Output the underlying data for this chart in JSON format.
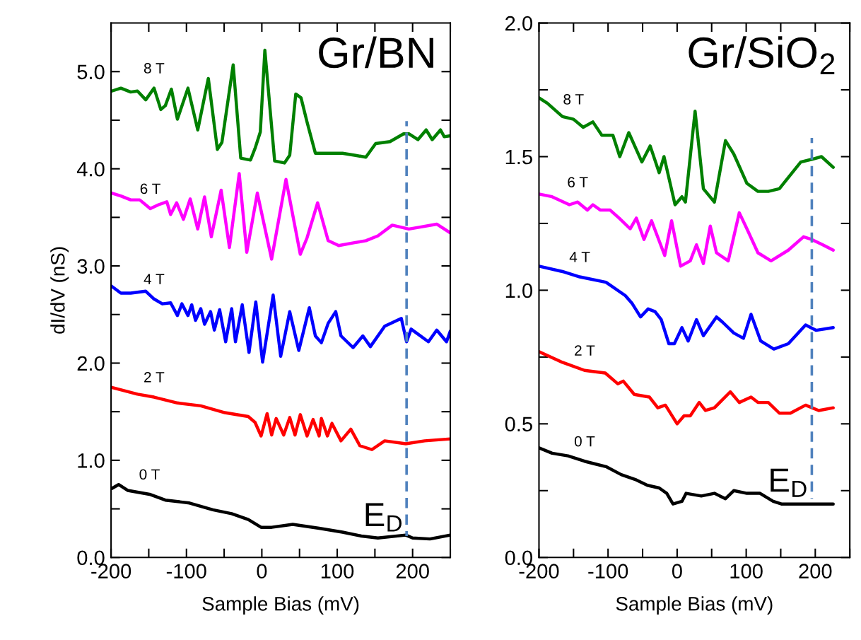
{
  "chart_data": [
    {
      "type": "line",
      "title": "Gr/BN",
      "xlabel": "Sample Bias (mV)",
      "ylabel": "dI/dV (nS)",
      "xlim": [
        -200,
        250
      ],
      "xticks": [
        -200,
        {
          "value": -150,
          "label": null
        },
        -100,
        {
          "value": -50,
          "label": null
        },
        0,
        {
          "value": 50,
          "label": null
        },
        100,
        {
          "value": 150,
          "label": null
        },
        200,
        {
          "value": 250,
          "label": null
        }
      ],
      "ylim": [
        0,
        5.5
      ],
      "yticks": [
        {
          "value": 0,
          "label": "0.0"
        },
        {
          "value": 0.5,
          "label": null
        },
        {
          "value": 1,
          "label": "1.0"
        },
        {
          "value": 1.5,
          "label": null
        },
        {
          "value": 2,
          "label": "2.0"
        },
        {
          "value": 2.5,
          "label": null
        },
        {
          "value": 3,
          "label": "3.0"
        },
        {
          "value": 3.5,
          "label": null
        },
        {
          "value": 4,
          "label": "4.0"
        },
        {
          "value": 4.5,
          "label": null
        },
        {
          "value": 5,
          "label": "5.0"
        }
      ],
      "annotations": [
        {
          "text": "E$_{D}$",
          "x": 188,
          "y": 0.25
        }
      ],
      "series": [
        {
          "name": "8 T",
          "color": "#008000",
          "x": [
            -199,
            -187,
            -174,
            -165,
            -154,
            -143,
            -134,
            -128,
            -120,
            -112,
            -98,
            -85,
            -71,
            -59,
            -53,
            -38,
            -28,
            -15,
            -9,
            -2,
            4,
            17,
            30,
            37,
            45,
            52,
            60,
            71,
            91,
            107,
            123,
            138,
            151,
            170,
            188,
            195,
            207,
            218,
            226,
            237,
            242,
            250
          ],
          "values": [
            4.8,
            4.83,
            4.79,
            4.8,
            4.71,
            4.83,
            4.61,
            4.65,
            4.82,
            4.51,
            4.83,
            4.4,
            4.93,
            4.2,
            4.27,
            5.07,
            4.11,
            4.09,
            4.21,
            4.38,
            5.22,
            4.08,
            4.06,
            4.14,
            4.77,
            4.73,
            4.48,
            4.16,
            4.16,
            4.16,
            4.14,
            4.12,
            4.26,
            4.28,
            4.36,
            4.36,
            4.3,
            4.4,
            4.3,
            4.4,
            4.33,
            4.34
          ]
        },
        {
          "name": "6 T",
          "color": "#ff00ff",
          "x": [
            -199,
            -187,
            -174,
            -162,
            -148,
            -137,
            -126,
            -121,
            -113,
            -104,
            -95,
            -85,
            -76,
            -67,
            -54,
            -43,
            -30,
            -20,
            -6,
            13,
            32,
            51,
            60,
            74,
            88,
            102,
            123,
            138,
            154,
            173,
            195,
            210,
            232,
            250
          ],
          "values": [
            3.75,
            3.72,
            3.68,
            3.68,
            3.59,
            3.63,
            3.66,
            3.53,
            3.65,
            3.48,
            3.69,
            3.38,
            3.71,
            3.3,
            3.78,
            3.19,
            3.95,
            3.14,
            3.75,
            3.07,
            3.89,
            3.12,
            3.29,
            3.65,
            3.26,
            3.21,
            3.24,
            3.26,
            3.31,
            3.42,
            3.38,
            3.4,
            3.43,
            3.34
          ]
        },
        {
          "name": "4 T",
          "color": "#0000ff",
          "x": [
            -199,
            -187,
            -174,
            -154,
            -143,
            -132,
            -121,
            -112,
            -106,
            -98,
            -93,
            -88,
            -81,
            -76,
            -68,
            -63,
            -56,
            -48,
            -40,
            -35,
            -26,
            -17,
            -8,
            1,
            15,
            25,
            37,
            49,
            63,
            71,
            79,
            88,
            98,
            105,
            121,
            134,
            144,
            163,
            185,
            192,
            198,
            221,
            232,
            245,
            250
          ],
          "values": [
            2.79,
            2.72,
            2.72,
            2.74,
            2.66,
            2.61,
            2.62,
            2.49,
            2.61,
            2.49,
            2.6,
            2.44,
            2.56,
            2.4,
            2.53,
            2.34,
            2.55,
            2.22,
            2.56,
            2.22,
            2.6,
            2.11,
            2.63,
            2.01,
            2.7,
            2.07,
            2.53,
            2.13,
            2.57,
            2.28,
            2.21,
            2.41,
            2.53,
            2.28,
            2.16,
            2.28,
            2.17,
            2.38,
            2.46,
            2.22,
            2.35,
            2.22,
            2.34,
            2.22,
            2.33
          ]
        },
        {
          "name": "2 T",
          "color": "#ff0000",
          "x": [
            -199,
            -165,
            -143,
            -112,
            -81,
            -49,
            -18,
            -9,
            -1,
            7,
            13,
            19,
            29,
            37,
            44,
            51,
            60,
            68,
            76,
            79,
            87,
            93,
            105,
            118,
            130,
            146,
            163,
            191,
            216,
            250
          ],
          "values": [
            1.75,
            1.68,
            1.65,
            1.59,
            1.56,
            1.49,
            1.45,
            1.39,
            1.25,
            1.48,
            1.26,
            1.43,
            1.26,
            1.44,
            1.26,
            1.47,
            1.25,
            1.42,
            1.25,
            1.43,
            1.25,
            1.38,
            1.2,
            1.32,
            1.15,
            1.11,
            1.2,
            1.17,
            1.2,
            1.22
          ]
        },
        {
          "name": "0 T",
          "color": "#000000",
          "x": [
            -199,
            -190,
            -178,
            -149,
            -128,
            -96,
            -65,
            -40,
            -18,
            -1,
            13,
            41,
            76,
            107,
            132,
            154,
            191,
            200,
            223,
            250
          ],
          "values": [
            0.71,
            0.75,
            0.69,
            0.65,
            0.59,
            0.56,
            0.49,
            0.45,
            0.39,
            0.31,
            0.31,
            0.34,
            0.3,
            0.26,
            0.22,
            0.2,
            0.23,
            0.2,
            0.19,
            0.23
          ]
        },
        {
          "color": "#4f81bd",
          "line_style": "dashed",
          "x": [
            192,
            192
          ],
          "values": [
            0.22,
            4.49
          ]
        }
      ]
    },
    {
      "type": "line",
      "title": "Gr/SiO$_{2}$",
      "xlabel": "Sample Bias (mV)",
      "xlim": [
        -200,
        250
      ],
      "xticks": [
        -200,
        {
          "value": -150,
          "label": null
        },
        -100,
        {
          "value": -50,
          "label": null
        },
        0,
        {
          "value": 50,
          "label": null
        },
        100,
        {
          "value": 150,
          "label": null
        },
        200,
        {
          "value": 250,
          "label": null
        }
      ],
      "ylim": [
        0,
        2.0
      ],
      "yticks": [
        {
          "value": 0,
          "label": "0.0"
        },
        {
          "value": 0.25,
          "label": null
        },
        0.5,
        {
          "value": 0.75,
          "label": null
        },
        {
          "value": 1,
          "label": "1.0"
        },
        {
          "value": 1.25,
          "label": null
        },
        1.5,
        {
          "value": 1.75,
          "label": null
        },
        {
          "value": 2,
          "label": "2.0"
        }
      ],
      "annotations": [
        {
          "text": "E$_{D}$",
          "x": 190,
          "y": 0.22
        }
      ],
      "series": [
        {
          "name": "8 T",
          "color": "#008000",
          "x": [
            -200,
            -188,
            -166,
            -150,
            -136,
            -122,
            -109,
            -93,
            -83,
            -70,
            -51,
            -39,
            -26,
            -19,
            -3,
            7,
            12,
            26,
            38,
            54,
            70,
            82,
            101,
            117,
            132,
            148,
            179,
            195,
            209,
            226
          ],
          "values": [
            1.72,
            1.7,
            1.65,
            1.64,
            1.61,
            1.63,
            1.58,
            1.58,
            1.5,
            1.59,
            1.48,
            1.54,
            1.44,
            1.5,
            1.32,
            1.35,
            1.33,
            1.67,
            1.38,
            1.33,
            1.56,
            1.51,
            1.4,
            1.37,
            1.37,
            1.38,
            1.48,
            1.49,
            1.5,
            1.46
          ]
        },
        {
          "name": "6 T",
          "color": "#ff00ff",
          "x": [
            -200,
            -181,
            -156,
            -144,
            -130,
            -122,
            -111,
            -97,
            -84,
            -68,
            -59,
            -48,
            -37,
            -18,
            -8,
            5,
            19,
            28,
            38,
            48,
            57,
            74,
            90,
            101,
            117,
            136,
            161,
            183,
            195,
            211,
            226
          ],
          "values": [
            1.36,
            1.35,
            1.32,
            1.33,
            1.3,
            1.32,
            1.3,
            1.3,
            1.27,
            1.23,
            1.27,
            1.19,
            1.26,
            1.13,
            1.26,
            1.09,
            1.11,
            1.17,
            1.1,
            1.24,
            1.14,
            1.11,
            1.29,
            1.23,
            1.14,
            1.11,
            1.15,
            1.2,
            1.19,
            1.17,
            1.15
          ]
        },
        {
          "name": "4 T",
          "color": "#0000ff",
          "x": [
            -200,
            -166,
            -141,
            -103,
            -75,
            -65,
            -53,
            -42,
            -32,
            -23,
            -12,
            -4,
            7,
            16,
            28,
            38,
            57,
            66,
            82,
            96,
            107,
            121,
            140,
            161,
            186,
            201,
            226
          ],
          "values": [
            1.09,
            1.07,
            1.05,
            1.03,
            0.98,
            0.95,
            0.9,
            0.93,
            0.92,
            0.89,
            0.8,
            0.8,
            0.86,
            0.81,
            0.89,
            0.83,
            0.9,
            0.88,
            0.84,
            0.82,
            0.91,
            0.81,
            0.78,
            0.8,
            0.87,
            0.85,
            0.86
          ]
        },
        {
          "name": "2 T",
          "color": "#ff0000",
          "x": [
            -200,
            -166,
            -134,
            -104,
            -86,
            -78,
            -62,
            -40,
            -28,
            -17,
            0,
            10,
            19,
            32,
            41,
            54,
            77,
            90,
            107,
            117,
            132,
            148,
            164,
            186,
            205,
            226
          ],
          "values": [
            0.77,
            0.73,
            0.7,
            0.69,
            0.65,
            0.66,
            0.61,
            0.6,
            0.56,
            0.57,
            0.5,
            0.53,
            0.53,
            0.58,
            0.55,
            0.56,
            0.62,
            0.58,
            0.6,
            0.58,
            0.58,
            0.54,
            0.54,
            0.57,
            0.55,
            0.56
          ]
        },
        {
          "name": "0 T",
          "color": "#000000",
          "x": [
            -200,
            -181,
            -158,
            -134,
            -119,
            -103,
            -81,
            -59,
            -43,
            -26,
            -15,
            -6,
            7,
            13,
            35,
            54,
            70,
            82,
            101,
            120,
            139,
            151,
            179,
            195,
            217,
            226
          ],
          "values": [
            0.41,
            0.39,
            0.38,
            0.36,
            0.35,
            0.34,
            0.31,
            0.29,
            0.27,
            0.26,
            0.24,
            0.2,
            0.21,
            0.24,
            0.23,
            0.24,
            0.22,
            0.25,
            0.24,
            0.24,
            0.21,
            0.2,
            0.2,
            0.2,
            0.2,
            0.2
          ]
        },
        {
          "color": "#4f81bd",
          "line_style": "dashed",
          "x": [
            195,
            195
          ],
          "values": [
            0.22,
            1.57
          ]
        }
      ]
    }
  ]
}
